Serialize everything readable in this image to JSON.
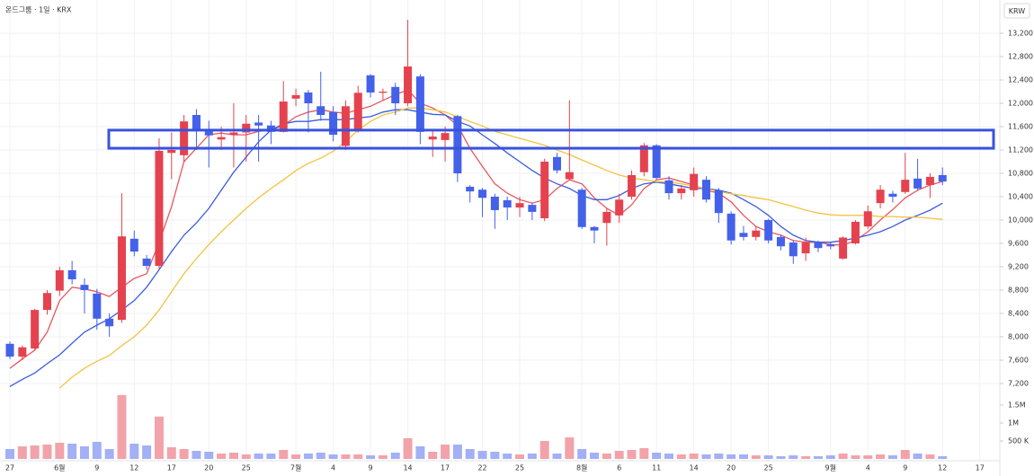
{
  "chart_data": {
    "type": "candlestick",
    "title": "온드그룹 · 1일 · KRX",
    "currency": "KRW",
    "categories": [
      "27",
      null,
      null,
      null,
      "6월",
      null,
      null,
      "9",
      null,
      null,
      "12",
      null,
      null,
      "17",
      null,
      null,
      "20",
      null,
      null,
      "25",
      null,
      null,
      null,
      "7월",
      null,
      null,
      "4",
      null,
      null,
      "9",
      null,
      null,
      "14",
      null,
      null,
      "17",
      null,
      null,
      "22",
      null,
      null,
      "25",
      null,
      null,
      null,
      null,
      "8월",
      null,
      null,
      "6",
      null,
      null,
      "11",
      null,
      null,
      "14",
      null,
      null,
      "20",
      null,
      null,
      "25",
      null,
      null,
      null,
      null,
      "9월",
      null,
      null,
      "4",
      null,
      null,
      "9",
      null,
      null,
      "12",
      null,
      null,
      "17"
    ],
    "open": [
      7880,
      7660,
      7800,
      8460,
      8790,
      9140,
      8890,
      8740,
      8310,
      8290,
      9680,
      9340,
      9215,
      11150,
      11110,
      11800,
      11520,
      11380,
      11460,
      11500,
      11670,
      11620,
      11510,
      12080,
      12185,
      11950,
      11850,
      11270,
      11540,
      12480,
      12180,
      12280,
      12000,
      12460,
      11380,
      11370,
      11780,
      10570,
      10520,
      10400,
      10340,
      10215,
      10260,
      10030,
      11080,
      10700,
      10520,
      9880,
      9950,
      10080,
      10400,
      10820,
      11280,
      10680,
      10460,
      10510,
      10690,
      10510,
      10110,
      9780,
      9710,
      10000,
      9710,
      9615,
      9430,
      9615,
      9580,
      9340,
      9600,
      9890,
      10290,
      10450,
      10480,
      10710,
      10600,
      10770,
      null,
      null,
      null
    ],
    "high": [
      7920,
      7850,
      8480,
      8800,
      9200,
      9300,
      9000,
      8820,
      8400,
      10460,
      9820,
      9400,
      11400,
      11500,
      11800,
      11900,
      11700,
      11600,
      12000,
      11800,
      11800,
      11700,
      12380,
      12250,
      12230,
      12540,
      11950,
      12050,
      12300,
      12500,
      12250,
      12350,
      13430,
      12500,
      11550,
      11600,
      11800,
      10600,
      10550,
      10450,
      10400,
      10400,
      10300,
      11050,
      11150,
      12050,
      10550,
      9900,
      10200,
      10450,
      10850,
      11320,
      11300,
      10750,
      10600,
      10900,
      10750,
      10550,
      10150,
      9900,
      9900,
      10020,
      9750,
      9650,
      9700,
      9650,
      9620,
      9720,
      10000,
      10250,
      10600,
      10500,
      11150,
      11050,
      10800,
      10900,
      null,
      null,
      null
    ],
    "low": [
      7620,
      7600,
      7780,
      8380,
      8700,
      8900,
      8400,
      8120,
      8000,
      8240,
      9380,
      9150,
      9150,
      10700,
      11000,
      11200,
      10900,
      11200,
      10900,
      11000,
      11000,
      11300,
      11500,
      11950,
      11500,
      11700,
      11350,
      11200,
      11500,
      12100,
      12050,
      11800,
      11950,
      11300,
      11080,
      11000,
      10650,
      10300,
      10050,
      9850,
      10000,
      10050,
      10000,
      9980,
      10800,
      10680,
      9850,
      9600,
      9560,
      9950,
      10350,
      10750,
      10700,
      10350,
      10350,
      10400,
      10300,
      9950,
      9580,
      9650,
      9650,
      9600,
      9480,
      9250,
      9300,
      9450,
      9500,
      9320,
      9580,
      9850,
      10200,
      10300,
      10450,
      10500,
      10380,
      10600,
      null,
      null,
      null
    ],
    "close": [
      7660,
      7820,
      8460,
      8750,
      9140,
      8985,
      8800,
      8310,
      8180,
      9720,
      9460,
      9215,
      11185,
      11200,
      11690,
      11520,
      11450,
      11420,
      11500,
      11650,
      11620,
      11510,
      12030,
      12140,
      12000,
      11800,
      11460,
      11950,
      12180,
      12185,
      12200,
      12000,
      12630,
      11510,
      11430,
      11490,
      10800,
      10490,
      10380,
      10170,
      10215,
      10290,
      10140,
      11000,
      10850,
      10820,
      9880,
      9820,
      10140,
      10350,
      10770,
      11280,
      10720,
      10460,
      10540,
      10790,
      10350,
      10120,
      9650,
      9710,
      9820,
      9650,
      9550,
      9380,
      9615,
      9520,
      9550,
      9700,
      9970,
      10150,
      10520,
      10400,
      10690,
      10540,
      10740,
      10660,
      null,
      null,
      null
    ],
    "volume": [
      275000,
      350000,
      375000,
      400000,
      450000,
      425000,
      350000,
      475000,
      275000,
      1780000,
      425000,
      375000,
      1180000,
      325000,
      275000,
      225000,
      200000,
      150000,
      175000,
      125000,
      150000,
      150000,
      250000,
      125000,
      150000,
      175000,
      125000,
      125000,
      125000,
      100000,
      100000,
      175000,
      575000,
      350000,
      200000,
      400000,
      400000,
      275000,
      225000,
      200000,
      150000,
      125000,
      150000,
      500000,
      150000,
      600000,
      275000,
      175000,
      150000,
      225000,
      250000,
      300000,
      175000,
      150000,
      125000,
      150000,
      125000,
      150000,
      125000,
      125000,
      100000,
      100000,
      75000,
      100000,
      75000,
      75000,
      100000,
      150000,
      100000,
      100000,
      125000,
      100000,
      250000,
      150000,
      125000,
      75000,
      null,
      null,
      null
    ],
    "up_color": "#e5424f",
    "down_color": "#4461ea",
    "volume_up_color": "#f2a3aa",
    "volume_down_color": "#a3b0f5",
    "series": [
      {
        "color": "#e8575e",
        "values": [
          7460,
          7620,
          7770,
          8080,
          8620,
          8850,
          8820,
          8770,
          8690,
          8850,
          9000,
          9080,
          9620,
          10230,
          11000,
          11230,
          11460,
          11490,
          11460,
          11460,
          11520,
          11540,
          11620,
          11770,
          11850,
          11890,
          11850,
          11830,
          11890,
          11950,
          12050,
          12150,
          12230,
          12000,
          11920,
          11800,
          11620,
          11230,
          10920,
          10620,
          10460,
          10350,
          10290,
          10350,
          10540,
          10690,
          10620,
          10380,
          10200,
          10080,
          10260,
          10540,
          10690,
          10720,
          10660,
          10600,
          10510,
          10460,
          10310,
          10080,
          9890,
          9800,
          9740,
          9650,
          9620,
          9620,
          9580,
          9570,
          9650,
          9800,
          10000,
          10180,
          10380,
          10510,
          10600,
          10660,
          null,
          null,
          null
        ]
      },
      {
        "color": "#3a5de0",
        "values": [
          7150,
          7270,
          7380,
          7540,
          7690,
          7890,
          8080,
          8200,
          8310,
          8460,
          8620,
          8850,
          9150,
          9460,
          9740,
          9950,
          10200,
          10510,
          10820,
          11080,
          11340,
          11540,
          11650,
          11690,
          11690,
          11720,
          11720,
          11720,
          11750,
          11770,
          11850,
          11890,
          11890,
          11850,
          11810,
          11800,
          11690,
          11610,
          11460,
          11310,
          11150,
          11000,
          10850,
          10720,
          10620,
          10540,
          10420,
          10350,
          10350,
          10420,
          10540,
          10620,
          10650,
          10620,
          10580,
          10540,
          10540,
          10510,
          10460,
          10350,
          10230,
          10080,
          9890,
          9740,
          9650,
          9620,
          9620,
          9650,
          9690,
          9740,
          9800,
          9890,
          10000,
          10080,
          10170,
          10290,
          null,
          null,
          null
        ]
      },
      {
        "color": "#f2c341",
        "values": [
          null,
          null,
          null,
          null,
          7120,
          7310,
          7460,
          7580,
          7680,
          7850,
          8000,
          8200,
          8460,
          8770,
          9080,
          9340,
          9580,
          9800,
          10000,
          10200,
          10380,
          10540,
          10690,
          10850,
          10970,
          11060,
          11180,
          11340,
          11540,
          11690,
          11800,
          11850,
          11920,
          11920,
          11890,
          11850,
          11770,
          11690,
          11610,
          11520,
          11460,
          11400,
          11340,
          11280,
          11200,
          11120,
          11030,
          10940,
          10850,
          10770,
          10720,
          10690,
          10660,
          10650,
          10620,
          10580,
          10540,
          10490,
          10450,
          10420,
          10380,
          10350,
          10290,
          10230,
          10170,
          10120,
          10090,
          10080,
          10080,
          10080,
          10060,
          10060,
          10050,
          10050,
          10030,
          10010,
          null,
          null,
          null
        ]
      }
    ],
    "highlight_band": [
      11230,
      11540
    ],
    "ylim": [
      7100,
      13500
    ],
    "yticks": [
      {
        "value": 7200,
        "label": "7,200"
      },
      {
        "value": 7600,
        "label": "7,600"
      },
      {
        "value": 8000,
        "label": "8,000"
      },
      {
        "value": 8400,
        "label": "8,400"
      },
      {
        "value": 8800,
        "label": "8,800"
      },
      {
        "value": 9200,
        "label": "9,200"
      },
      {
        "value": 9600,
        "label": "9,600"
      },
      {
        "value": 10000,
        "label": "10,000"
      },
      {
        "value": 10400,
        "label": "10,400"
      },
      {
        "value": 10800,
        "label": "10,800"
      },
      {
        "value": 11200,
        "label": "11,200"
      },
      {
        "value": 11600,
        "label": "11,600"
      },
      {
        "value": 12000,
        "label": "12,000"
      },
      {
        "value": 12400,
        "label": "12,400"
      },
      {
        "value": 12800,
        "label": "12,800"
      },
      {
        "value": 13200,
        "label": "13,200"
      }
    ],
    "volume_ylim": [
      0,
      2000000
    ],
    "volume_yticks": [
      {
        "value": 500000,
        "label": "500 K"
      },
      {
        "value": 1000000,
        "label": "1M"
      },
      {
        "value": 1500000,
        "label": "1.5M"
      }
    ],
    "grid": true
  }
}
